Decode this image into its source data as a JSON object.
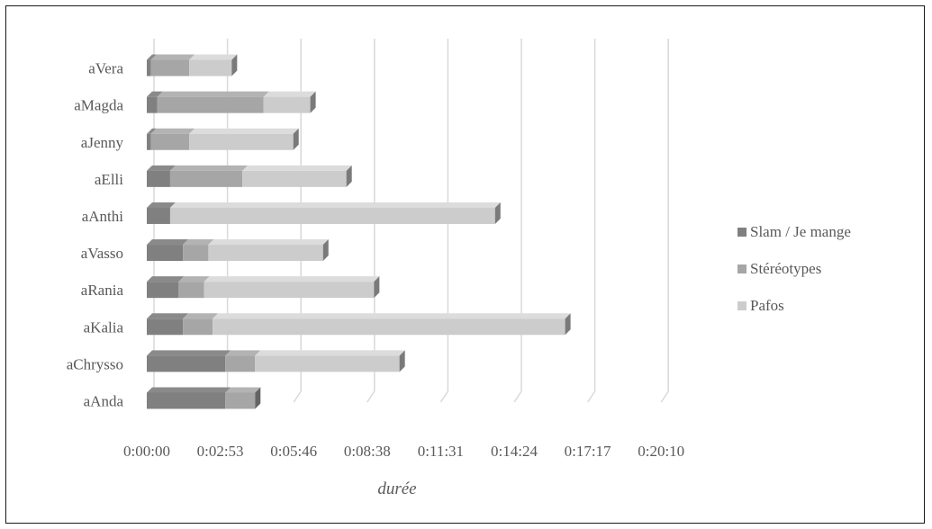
{
  "chart_data": {
    "type": "bar",
    "orientation": "horizontal",
    "stacked": true,
    "style": "3d",
    "categories": [
      "aAnda",
      "aChrysso",
      "aKalia",
      "aRania",
      "aVasso",
      "aAnthi",
      "aElli",
      "aJenny",
      "aMagda",
      "aVera"
    ],
    "series": [
      {
        "name": "Slam / Je mange",
        "values": [
          185,
          185,
          85,
          75,
          85,
          55,
          55,
          10,
          25,
          10
        ]
      },
      {
        "name": "Stéréotypes",
        "values": [
          70,
          70,
          70,
          60,
          60,
          0,
          170,
          90,
          250,
          90
        ]
      },
      {
        "name": "Pafos",
        "values": [
          0,
          340,
          830,
          400,
          270,
          765,
          245,
          245,
          110,
          100
        ]
      }
    ],
    "xticks": [
      "0:00:00",
      "0:02:53",
      "0:05:46",
      "0:08:38",
      "0:11:31",
      "0:14:24",
      "0:17:17",
      "0:20:10"
    ],
    "xlim": [
      0,
      1210
    ],
    "xlabel": "durée",
    "ylabel": "",
    "title": "",
    "grid": true,
    "legend_position": "right",
    "colors": {
      "Slam / Je mange": "#808080",
      "Stéréotypes": "#a6a6a6",
      "Pafos": "#cccccc"
    }
  }
}
